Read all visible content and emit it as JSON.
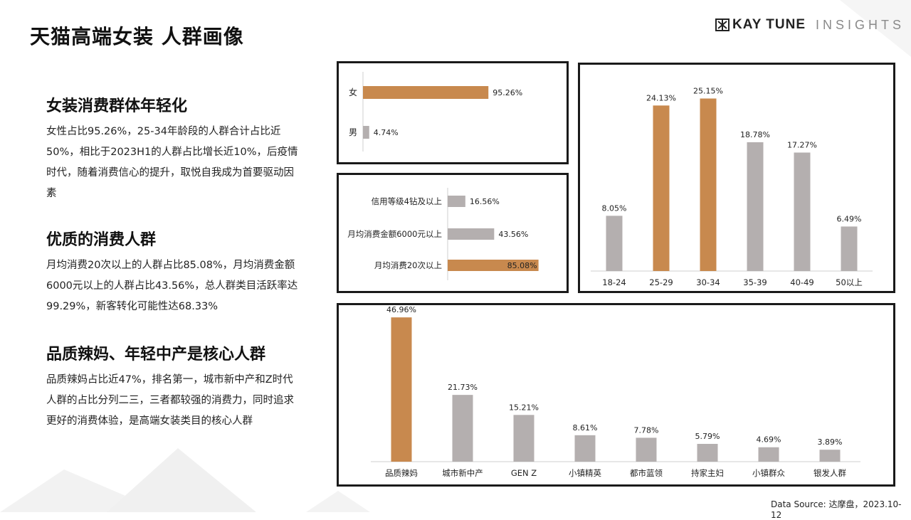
{
  "page_title": "天猫高端女装 人群画像",
  "brand": {
    "name": "KAY TUNE",
    "sub": "INSIGHTS",
    "footer_watermark": "KAY TUNE"
  },
  "sections": [
    {
      "heading": "女装消费群体年轻化",
      "body": "女性占比95.26%，25-34年龄段的人群合计占比近50%，相比于2023H1的人群占比增长近10%，后疫情时代，随着消费信心的提升，取悦自我成为首要驱动因素"
    },
    {
      "heading": "优质的消费人群",
      "body": "月均消费20次以上的人群占比85.08%，月均消费金额6000元以上的人群占比43.56%，总人群类目活跃率达99.29%，新客转化可能性达68.33%"
    },
    {
      "heading": "品质辣妈、年轻中产是核心人群",
      "body": "品质辣妈占比近47%，排名第一，城市新中产和Z时代人群的占比分列二三，三者都较强的消费力，同时追求更好的消费体验，是高端女装类目的核心人群"
    }
  ],
  "source": "Data Source: 达摩盘，2023.10-12",
  "colors": {
    "highlight": "#c8894e",
    "neutral": "#b4afaf",
    "border": "#1a1a1a"
  },
  "chart_data": [
    {
      "type": "bar",
      "orientation": "horizontal",
      "categories": [
        "女",
        "男"
      ],
      "values": [
        95.26,
        4.74
      ],
      "labels": [
        "95.26%",
        "4.74%"
      ],
      "highlight": [
        true,
        false
      ],
      "xlim": [
        0,
        100
      ]
    },
    {
      "type": "bar",
      "orientation": "horizontal",
      "categories": [
        "信用等级4钻及以上",
        "月均消费金额6000元以上",
        "月均消费20次以上"
      ],
      "values": [
        16.56,
        43.56,
        85.08
      ],
      "labels": [
        "16.56%",
        "43.56%",
        "85.08%"
      ],
      "highlight": [
        false,
        false,
        true
      ],
      "xlim": [
        0,
        100
      ]
    },
    {
      "type": "bar",
      "orientation": "vertical",
      "categories": [
        "18-24",
        "25-29",
        "30-34",
        "35-39",
        "40-49",
        "50以上"
      ],
      "values": [
        8.05,
        24.13,
        25.15,
        18.78,
        17.27,
        6.49
      ],
      "labels": [
        "8.05%",
        "24.13%",
        "25.15%",
        "18.78%",
        "17.27%",
        "6.49%"
      ],
      "highlight": [
        false,
        true,
        true,
        false,
        false,
        false
      ],
      "ylim": [
        0,
        28
      ]
    },
    {
      "type": "bar",
      "orientation": "vertical",
      "categories": [
        "品质辣妈",
        "城市新中产",
        "GEN Z",
        "小镇精英",
        "都市蓝领",
        "持家主妇",
        "小镇群众",
        "银发人群"
      ],
      "values": [
        46.96,
        21.73,
        15.21,
        8.61,
        7.78,
        5.79,
        4.69,
        3.89
      ],
      "labels": [
        "46.96%",
        "21.73%",
        "15.21%",
        "8.61%",
        "7.78%",
        "5.79%",
        "4.69%",
        "3.89%"
      ],
      "highlight": [
        true,
        false,
        false,
        false,
        false,
        false,
        false,
        false
      ],
      "ylim": [
        0,
        47
      ]
    }
  ]
}
